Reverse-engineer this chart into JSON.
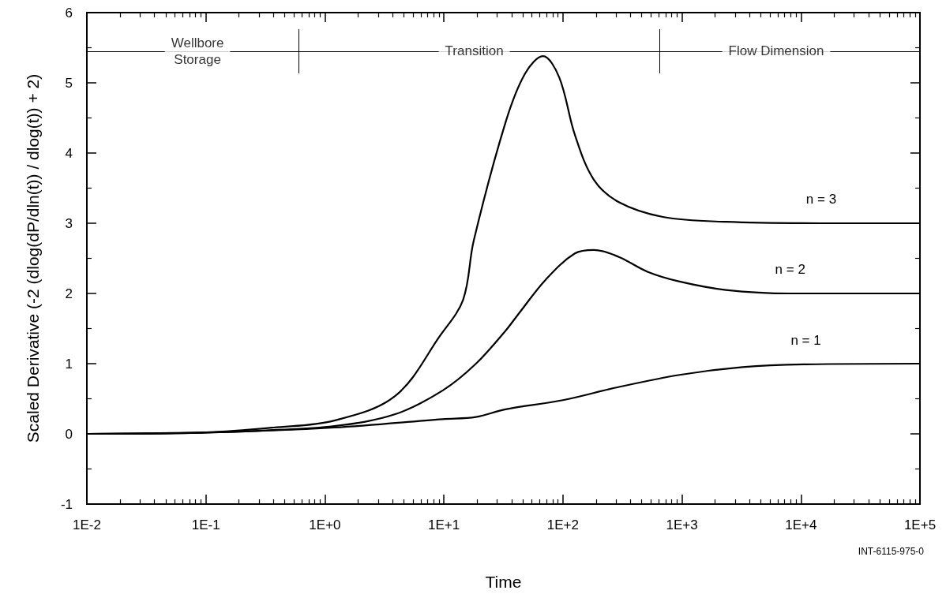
{
  "chart_data": {
    "type": "line",
    "xlabel": "Time",
    "ylabel": "Scaled Derivative (-2 (dlog(dP/dln(t)) / dlog(t)) + 2)",
    "log": "x",
    "marker": "none",
    "line_style": "solid",
    "grid": false,
    "legend": false,
    "xlim": [
      0.01,
      100000
    ],
    "xticks": [
      {
        "value": 0.01,
        "label": "1E-2"
      },
      {
        "value": 0.1,
        "label": "1E-1"
      },
      {
        "value": 1,
        "label": "1E+0"
      },
      {
        "value": 10,
        "label": "1E+1"
      },
      {
        "value": 100,
        "label": "1E+2"
      },
      {
        "value": 1000,
        "label": "1E+3"
      },
      {
        "value": 10000,
        "label": "1E+4"
      },
      {
        "value": 100000,
        "label": "1E+5"
      }
    ],
    "ylim": [
      -1,
      6
    ],
    "yticks": [
      -1,
      0,
      1,
      2,
      3,
      4,
      5,
      6
    ],
    "series": [
      {
        "name": "n = 3",
        "color": "#000000",
        "x": [
          0.01,
          0.1,
          0.37,
          1.2,
          3.9,
          9.3,
          14.5,
          17.8,
          33,
          48,
          68,
          93,
          126,
          182,
          295,
          692,
          2344,
          14800,
          100000
        ],
        "values": [
          0,
          0.02,
          0.09,
          0.19,
          0.54,
          1.4,
          1.91,
          2.75,
          4.44,
          5.13,
          5.38,
          5.08,
          4.26,
          3.62,
          3.3,
          3.09,
          3.02,
          3,
          3
        ]
      },
      {
        "name": "n = 2",
        "color": "#000000",
        "x": [
          0.01,
          0.1,
          0.32,
          1.2,
          3.9,
          9.8,
          18.6,
          33,
          42,
          72,
          126,
          182,
          295,
          513,
          955,
          2344,
          8128,
          100000
        ],
        "values": [
          0,
          0.02,
          0.05,
          0.11,
          0.28,
          0.62,
          1,
          1.47,
          1.7,
          2.2,
          2.57,
          2.62,
          2.52,
          2.31,
          2.17,
          2.05,
          2,
          2
        ]
      },
      {
        "name": "n = 1",
        "color": "#000000",
        "x": [
          0.01,
          0.115,
          1.2,
          9.8,
          18.6,
          33,
          100,
          282,
          955,
          3236,
          11000,
          100000
        ],
        "values": [
          0,
          0.02,
          0.09,
          0.21,
          0.24,
          0.35,
          0.48,
          0.66,
          0.84,
          0.95,
          0.99,
          1
        ]
      }
    ],
    "ref_lines": [
      {
        "axis": "y",
        "value": 5.45,
        "label": null,
        "color": "#000000"
      },
      {
        "axis": "x",
        "value": 0.6,
        "label": null,
        "color": "#000000"
      },
      {
        "axis": "x",
        "value": 650,
        "label": null,
        "color": "#000000"
      }
    ],
    "annotations": [
      {
        "text": "Wellbore\nStorage",
        "x": 0.085,
        "y": 5.45
      },
      {
        "text": "Transition",
        "x": 18,
        "y": 5.45
      },
      {
        "text": "Flow Dimension",
        "x": 6200,
        "y": 5.45
      },
      "INT-6115-975-0"
    ]
  }
}
